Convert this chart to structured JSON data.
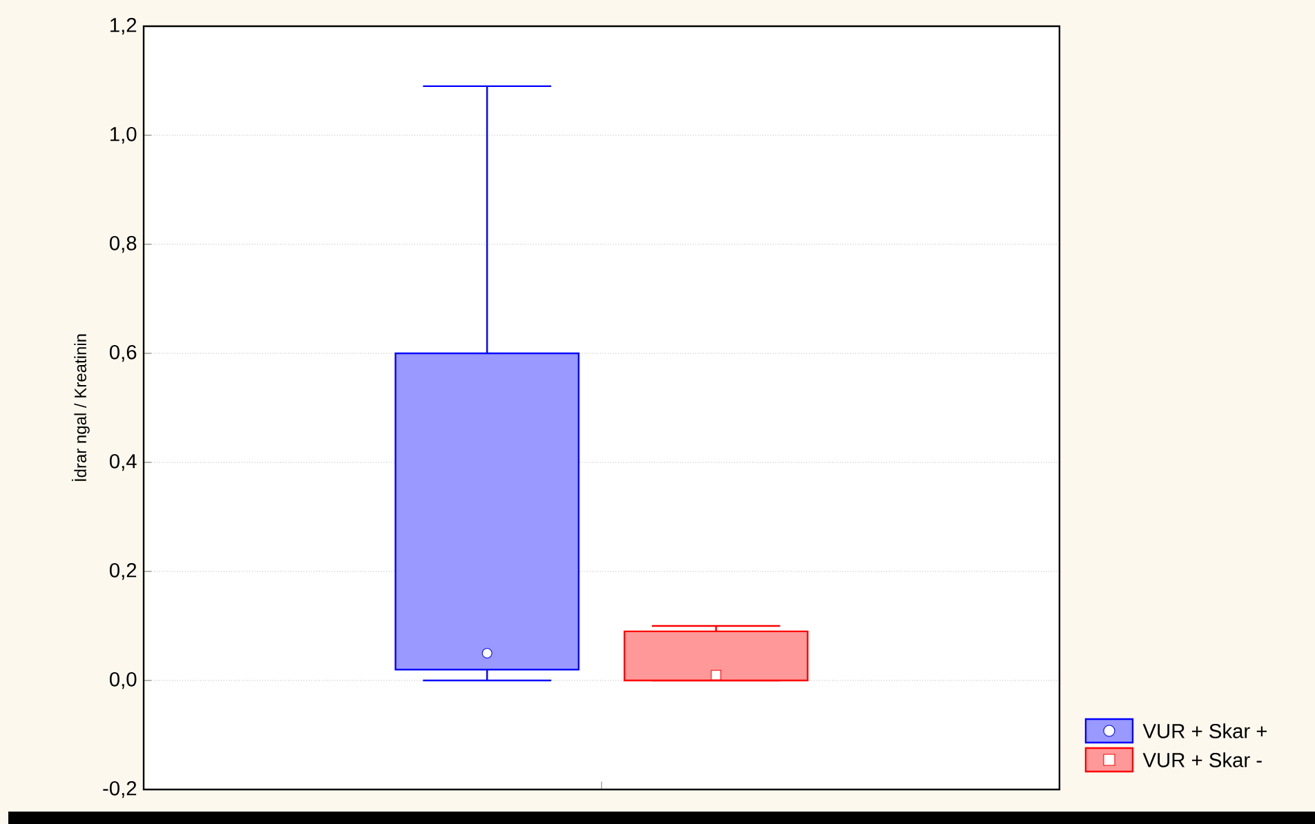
{
  "chart_data": {
    "type": "box",
    "ylabel": "İdrar ngal / Kreatinin",
    "categories": [
      null
    ],
    "ylim": [
      -0.2,
      1.2
    ],
    "yticks": [
      {
        "value": -0.2,
        "label": "-0,2"
      },
      {
        "value": 0.0,
        "label": "0,0"
      },
      {
        "value": 0.2,
        "label": "0,2"
      },
      {
        "value": 0.4,
        "label": "0,4"
      },
      {
        "value": 0.6,
        "label": "0,6"
      },
      {
        "value": 0.8,
        "label": "0,8"
      },
      {
        "value": 1.0,
        "label": "1,0"
      },
      {
        "value": 1.2,
        "label": "1,2"
      }
    ],
    "grid": "y",
    "legend": "bottom right",
    "series": [
      {
        "name": "VUR + Skar +",
        "color": "#0000ff",
        "marker": "circle",
        "boxes": [
          {
            "low": 0.0,
            "q1": 0.02,
            "median": 0.05,
            "q3": 0.6,
            "high": 1.09
          }
        ]
      },
      {
        "name": "VUR + Skar -",
        "color": "#ff0000",
        "marker": "square",
        "boxes": [
          {
            "low": 0.0,
            "q1": 0.0,
            "median": 0.01,
            "q3": 0.09,
            "high": 0.1
          }
        ]
      }
    ]
  }
}
